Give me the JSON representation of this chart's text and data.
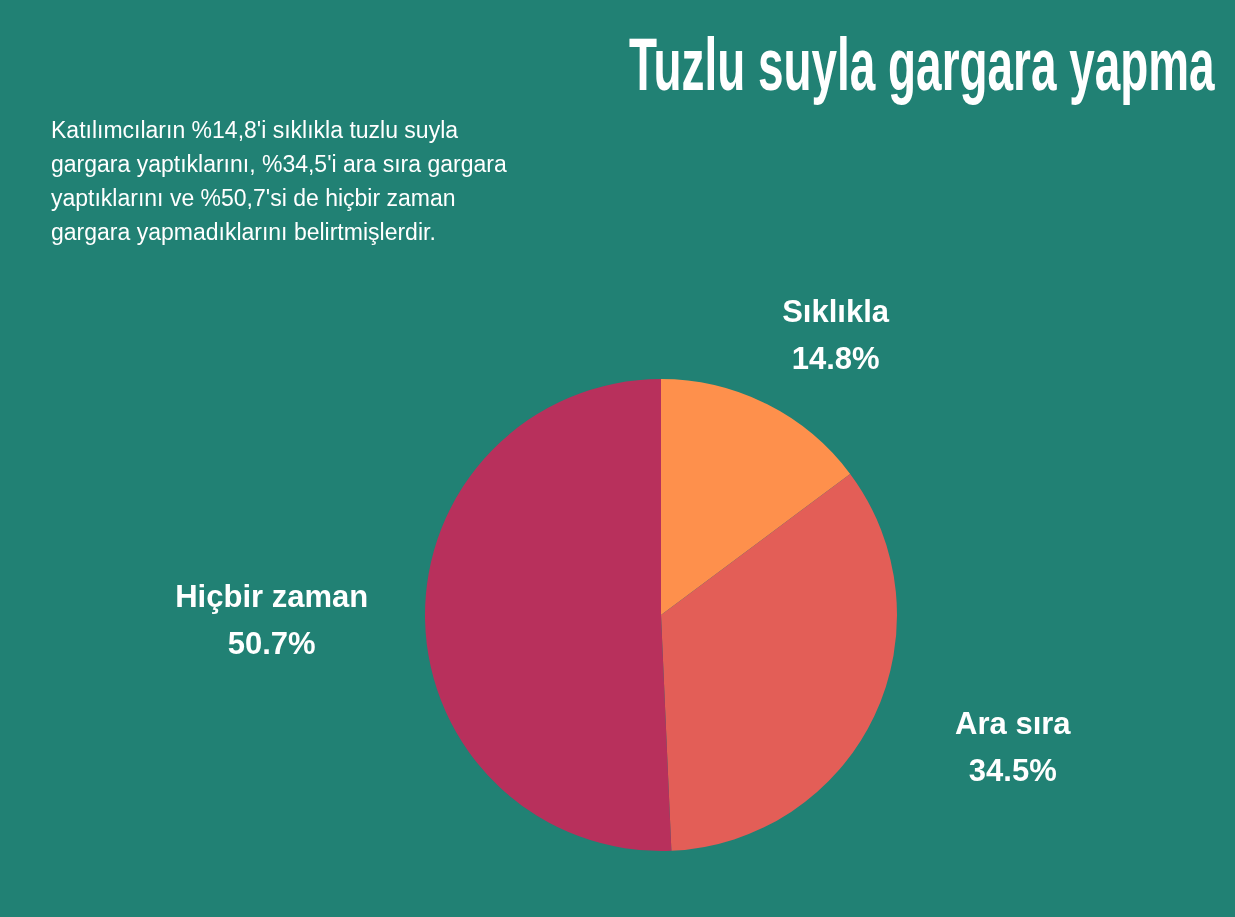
{
  "chart_data": {
    "type": "pie",
    "title": "Tuzlu suyla gargara yapma",
    "categories": [
      "Sıklıkla",
      "Ara sıra",
      "Hiçbir zaman"
    ],
    "values": [
      14.8,
      34.5,
      50.7
    ],
    "colors": [
      "#fe904c",
      "#e35e57",
      "#b8305c"
    ],
    "value_labels": [
      "14.8%",
      "34.5%",
      "50.7%"
    ],
    "annotations": [
      "Katılımcıların %14,8'i sıklıkla tuzlu suyla gargara yaptıklarını, %34,5'i ara sıra gargara yaptıklarını ve %50,7'si de hiçbir zaman gargara yapmadıklarını belirtmişlerdir."
    ],
    "legend": false
  }
}
